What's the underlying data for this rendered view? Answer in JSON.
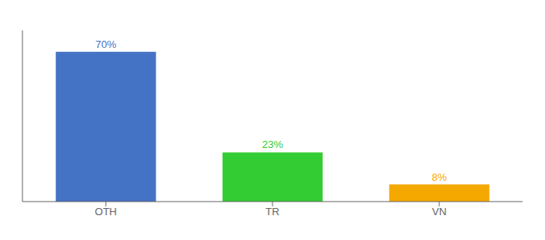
{
  "chart_data": {
    "type": "bar",
    "categories": [
      "OTH",
      "TR",
      "VN"
    ],
    "values": [
      70,
      23,
      8
    ],
    "value_labels": [
      "70%",
      "23%",
      "8%"
    ],
    "data_labels": true,
    "colors": [
      "#4472c4",
      "#33cc33",
      "#f5a800"
    ],
    "ylim": [
      0,
      80
    ],
    "tick_labels": "x",
    "grid": false
  }
}
